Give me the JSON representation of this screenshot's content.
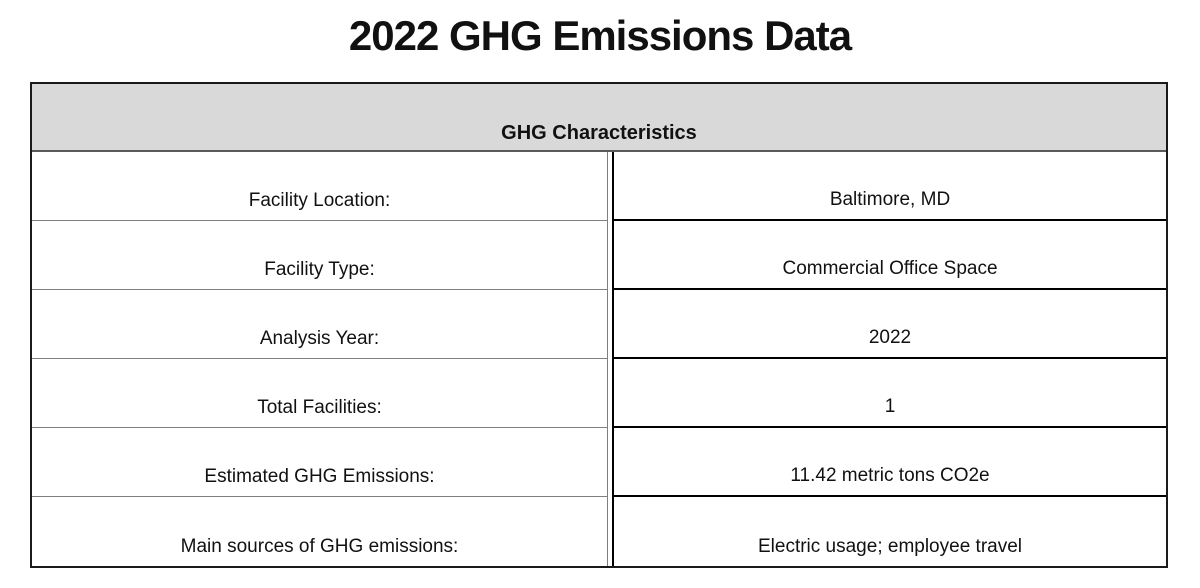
{
  "page": {
    "title": "2022 GHG Emissions Data"
  },
  "table": {
    "header": "GHG Characteristics",
    "rows": [
      {
        "label": "Facility Location:",
        "value": "Baltimore, MD"
      },
      {
        "label": "Facility Type:",
        "value": "Commercial Office Space"
      },
      {
        "label": "Analysis Year:",
        "value": "2022"
      },
      {
        "label": "Total Facilities:",
        "value": "1"
      },
      {
        "label": "Estimated GHG Emissions:",
        "value": "11.42 metric tons CO2e"
      },
      {
        "label": "Main sources of GHG emissions:",
        "value": "Electric usage; employee travel"
      }
    ],
    "colors": {
      "header_bg": "#d9d9d9",
      "grid_thin": "#7f7f7f",
      "grid_thick": "#000000",
      "text": "#111111"
    }
  }
}
